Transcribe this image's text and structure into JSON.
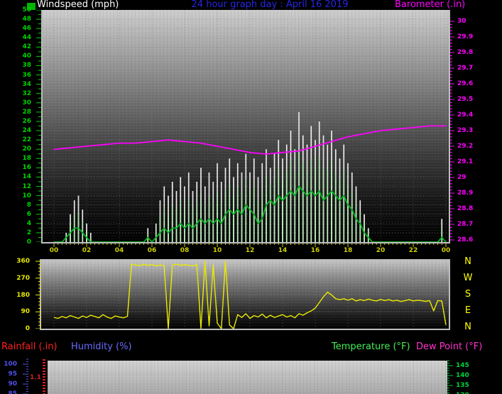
{
  "header": {
    "swatch_color": "#00b400",
    "windspeed_label": "Windspeed (mph)",
    "title": "24 hour graph day : April 16 2019",
    "barometer_label": "Barometer (.in)"
  },
  "footer_labels": {
    "rainfall": "Rainfall (.in)",
    "humidity": "Humidity (%)",
    "temperature": "Temperature (°F)",
    "dew_point": "Dew Point (°F)"
  },
  "chart_data": [
    {
      "type": "line",
      "title": "Windspeed (mph) and Barometer (.in) — 24 hour graph day : April 16 2019",
      "x_axis": {
        "range_hours": [
          0,
          24
        ],
        "tick_labels": [
          "00",
          "02",
          "04",
          "06",
          "08",
          "10",
          "12",
          "14",
          "16",
          "18",
          "20",
          "22",
          "00"
        ],
        "color": "#cfcf00"
      },
      "y_left": {
        "name": "windspeed_mph",
        "range": [
          0,
          50
        ],
        "tick_step": 2,
        "labels": [
          "50",
          "48",
          "46",
          "44",
          "42",
          "40",
          "38",
          "36",
          "34",
          "32",
          "30",
          "28",
          "26",
          "24",
          "22",
          "20",
          "18",
          "16",
          "14",
          "12",
          "10",
          "8",
          "6",
          "4",
          "2",
          "0"
        ],
        "color": "#00d200"
      },
      "y_right": {
        "name": "barometer_in",
        "range": [
          28.6,
          30
        ],
        "tick_step": 0.1,
        "labels": [
          "30",
          "29.9",
          "29.8",
          "29.7",
          "29.6",
          "29.5",
          "29.4",
          "29.3",
          "29.2",
          "29.1",
          "29",
          "28.9",
          "28.8",
          "28.7",
          "28.6"
        ],
        "color": "#ff00ff"
      },
      "grid": true,
      "series": [
        {
          "name": "wind_gust_mph",
          "style": "bars",
          "color": "#ececec",
          "interval_minutes": 15,
          "values": [
            0,
            0,
            0,
            2,
            6,
            9,
            10,
            7,
            4,
            2,
            0,
            0,
            0,
            0,
            0,
            0,
            0,
            0,
            0,
            0,
            0,
            0,
            0,
            3,
            0,
            4,
            9,
            12,
            10,
            13,
            11,
            14,
            12,
            15,
            11,
            13,
            16,
            12,
            15,
            13,
            17,
            13,
            16,
            18,
            14,
            17,
            15,
            19,
            15,
            18,
            14,
            17,
            20,
            16,
            19,
            22,
            18,
            21,
            24,
            20,
            28,
            23,
            21,
            25,
            22,
            26,
            23,
            21,
            24,
            20,
            18,
            21,
            17,
            15,
            12,
            9,
            6,
            3,
            0,
            0,
            0,
            0,
            0,
            0,
            0,
            0,
            0,
            0,
            0,
            0,
            0,
            0,
            0,
            0,
            0,
            5,
            0
          ]
        },
        {
          "name": "wind_speed_bars_mph",
          "style": "bars",
          "color": "#b7ecb7",
          "interval_minutes": 15,
          "values": [
            0,
            0,
            0,
            1.5,
            4,
            6,
            6.5,
            4.5,
            2.5,
            1,
            0,
            0,
            0,
            0,
            0,
            0,
            0,
            0,
            0,
            0,
            0,
            0,
            0,
            2,
            0,
            2.5,
            5.5,
            7.5,
            6,
            8,
            7,
            9,
            7.5,
            9.5,
            7,
            8.5,
            10.5,
            8,
            10,
            8.5,
            11,
            8.5,
            11,
            12.5,
            10,
            12,
            10.5,
            13.5,
            11,
            12,
            9,
            11,
            14,
            12.5,
            13.5,
            16,
            13.5,
            15.5,
            17.5,
            15,
            20,
            17,
            15.5,
            18,
            16,
            18.5,
            16,
            15.5,
            17.5,
            15,
            13.5,
            15.5,
            12.5,
            11,
            8.5,
            6.5,
            4,
            2,
            0,
            0,
            0,
            0,
            0,
            0,
            0,
            0,
            0,
            0,
            0,
            0,
            0,
            0,
            0,
            0,
            0,
            3,
            0
          ]
        },
        {
          "name": "wind_average_mph",
          "style": "line",
          "color": "#00b41e",
          "interval_minutes": 15,
          "values": [
            0,
            0,
            0,
            1,
            2,
            3,
            3,
            2,
            1,
            0,
            0,
            0,
            0,
            0,
            0,
            0,
            0,
            0,
            0,
            0,
            0,
            0,
            0,
            1,
            0,
            1,
            2,
            3,
            2,
            3,
            3,
            4,
            3,
            4,
            3,
            4,
            5,
            4,
            5,
            4,
            5,
            4,
            6,
            7,
            6,
            7,
            6,
            8,
            7,
            6,
            4,
            5,
            8,
            9,
            8,
            10,
            9,
            10,
            11,
            10,
            12,
            11,
            10,
            11,
            10,
            11,
            9,
            10,
            11,
            10,
            9,
            10,
            8,
            7,
            5,
            4,
            2,
            1,
            0,
            0,
            0,
            0,
            0,
            0,
            0,
            0,
            0,
            0,
            0,
            0,
            0,
            0,
            0,
            0,
            0,
            1,
            0
          ]
        },
        {
          "name": "barometer_in",
          "style": "line",
          "axis": "right",
          "color": "#ff00ff",
          "interval_minutes": 60,
          "values": [
            29.18,
            29.19,
            29.2,
            29.21,
            29.22,
            29.22,
            29.23,
            29.24,
            29.23,
            29.22,
            29.2,
            29.18,
            29.16,
            29.15,
            29.16,
            29.17,
            29.2,
            29.23,
            29.26,
            29.28,
            29.3,
            29.31,
            29.32,
            29.33,
            29.33
          ]
        }
      ]
    },
    {
      "type": "line",
      "title": "Wind direction (degrees)",
      "y_axis": {
        "range": [
          0,
          360
        ],
        "labels": [
          "360",
          "270",
          "180",
          "90",
          "0"
        ],
        "color": "#e8e800"
      },
      "compass_labels": [
        "N",
        "W",
        "S",
        "E",
        "N"
      ],
      "series": [
        {
          "name": "wind_direction_deg",
          "style": "line",
          "color": "#ecec00",
          "interval_minutes": 15,
          "values": [
            60,
            55,
            65,
            58,
            70,
            62,
            55,
            68,
            60,
            72,
            65,
            58,
            75,
            62,
            55,
            68,
            62,
            58,
            66,
            345,
            340,
            336,
            344,
            338,
            342,
            335,
            340,
            337,
            0,
            340,
            344,
            338,
            341,
            338,
            335,
            342,
            0,
            360,
            15,
            340,
            30,
            0,
            360,
            20,
            0,
            75,
            60,
            80,
            55,
            70,
            62,
            78,
            58,
            72,
            60,
            68,
            75,
            62,
            70,
            58,
            80,
            72,
            85,
            95,
            110,
            140,
            170,
            195,
            180,
            160,
            155,
            160,
            152,
            160,
            148,
            155,
            150,
            158,
            152,
            148,
            156,
            150,
            155,
            148,
            152,
            145,
            150,
            155,
            148,
            152,
            150,
            146,
            150,
            95,
            150,
            148,
            20
          ]
        }
      ]
    },
    {
      "type": "line",
      "title": "Rainfall / Humidity / Temperature / Dew Point (top edge visible only)",
      "y_left_humidity": {
        "visible_labels": [
          "100",
          "95",
          "90",
          "85"
        ],
        "color": "#5050e8"
      },
      "rain_axis": {
        "visible_label": "1.1",
        "color": "#d42020"
      },
      "y_right_temperature": {
        "visible_labels": [
          "145",
          "140",
          "135",
          "130"
        ],
        "color": "#00d23c"
      },
      "series": []
    }
  ]
}
